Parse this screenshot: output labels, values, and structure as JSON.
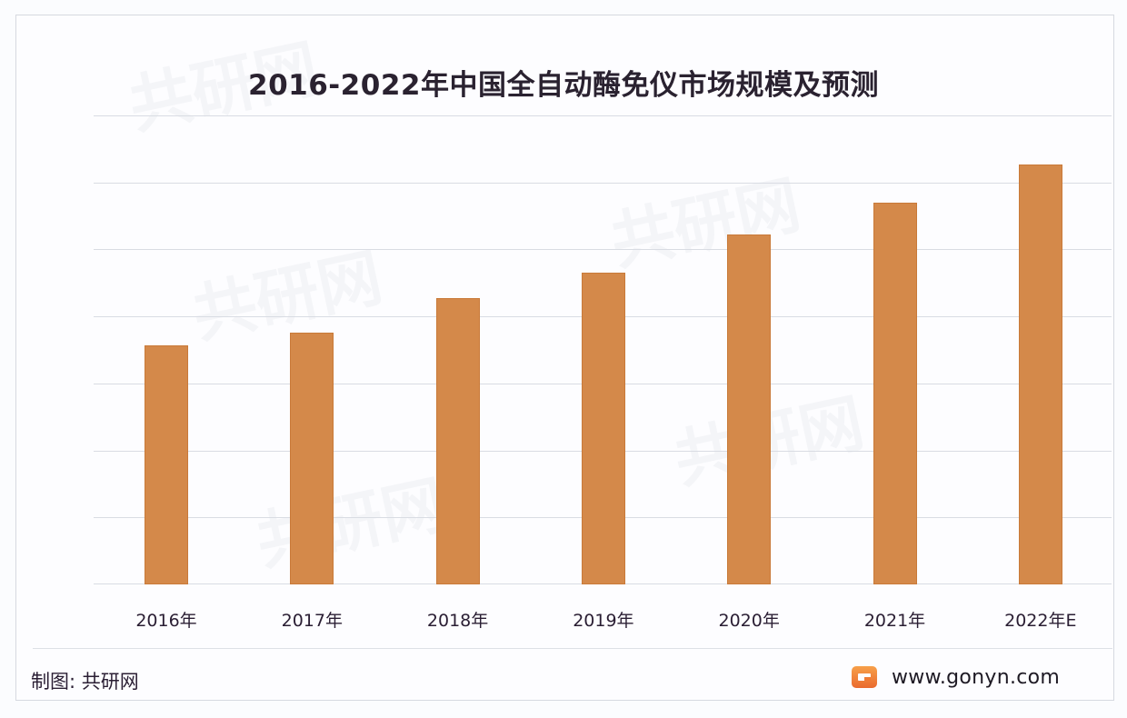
{
  "chart_data": {
    "type": "bar",
    "title": "2016-2022年中国全自动酶免仪市场规模及预测",
    "categories": [
      "2016年",
      "2017年",
      "2018年",
      "2019年",
      "2020年",
      "2021年",
      "2022年E"
    ],
    "values": [
      3.57,
      3.76,
      4.27,
      4.65,
      5.22,
      5.7,
      6.27
    ],
    "value_unit_note": "relative to gridline units (no y-axis tick labels shown)",
    "xlabel": "",
    "ylabel": "",
    "ylim": [
      0,
      7
    ],
    "grid": true,
    "gridline_count": 7,
    "legend": null,
    "bar_color": "#d4894a"
  },
  "footer": {
    "source": "制图: 共研网",
    "site_url": "www.gonyn.com",
    "logo_icon": "gonyn-logo-icon"
  },
  "watermark": {
    "text": "共研网",
    "url_text": "www.gonyn.com"
  }
}
